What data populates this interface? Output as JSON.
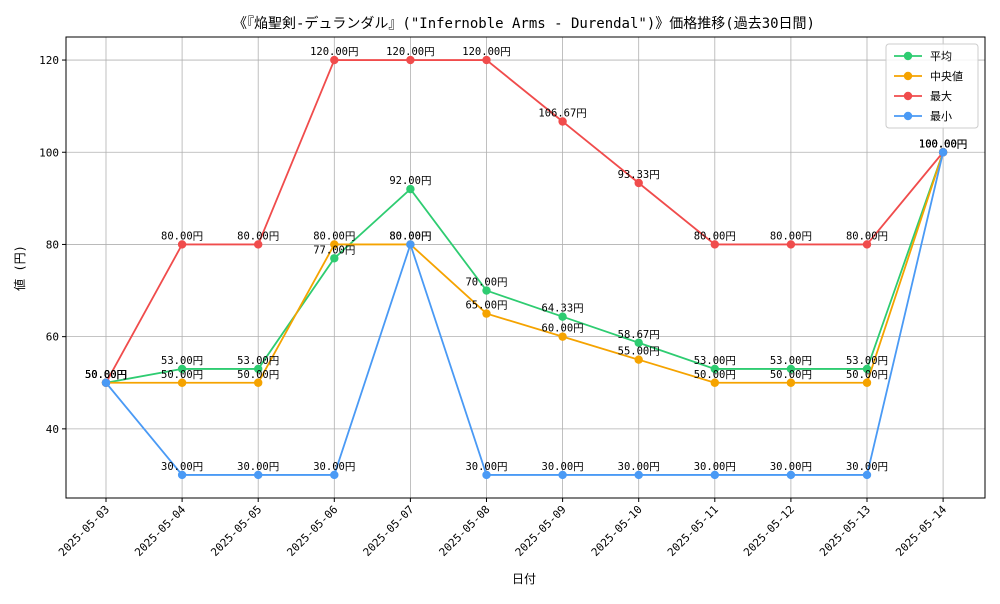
{
  "chart_data": {
    "type": "line",
    "title": "《『焔聖剣-デュランダル』(\"Infernoble Arms - Durendal\")》価格推移(過去30日間)",
    "xlabel": "日付",
    "ylabel": "値 (円)",
    "ylim": [
      25,
      125
    ],
    "yticks": [
      40,
      60,
      80,
      100,
      120
    ],
    "grid": true,
    "legend_position": "top-right",
    "categories": [
      "2025-05-03",
      "2025-05-04",
      "2025-05-05",
      "2025-05-06",
      "2025-05-07",
      "2025-05-08",
      "2025-05-09",
      "2025-05-10",
      "2025-05-11",
      "2025-05-12",
      "2025-05-13",
      "2025-05-14"
    ],
    "series": [
      {
        "name": "平均",
        "color": "#2ecc71",
        "values": [
          50,
          53,
          53,
          77,
          92,
          70,
          64.33,
          58.67,
          53,
          53,
          53,
          100
        ],
        "labels": [
          "50.00円",
          "53.00円",
          "53.00円",
          "77.00円",
          "92.00円",
          "70.00円",
          "64.33円",
          "58.67円",
          "53.00円",
          "53.00円",
          "53.00円",
          "100.00円"
        ]
      },
      {
        "name": "中央値",
        "color": "#f5a300",
        "values": [
          50,
          50,
          50,
          80,
          80,
          65,
          60,
          55,
          50,
          50,
          50,
          100
        ],
        "labels": [
          "50.00円",
          "50.00円",
          "50.00円",
          "80.00円",
          "80.00円",
          "65.00円",
          "60.00円",
          "55.00円",
          "50.00円",
          "50.00円",
          "50.00円",
          "100.00円"
        ]
      },
      {
        "name": "最大",
        "color": "#f04c4c",
        "values": [
          50,
          80,
          80,
          120,
          120,
          120,
          106.67,
          93.33,
          80,
          80,
          80,
          100
        ],
        "labels": [
          "50.00円",
          "80.00円",
          "80.00円",
          "120.00円",
          "120.00円",
          "120.00円",
          "106.67円",
          "93.33円",
          "80.00円",
          "80.00円",
          "80.00円",
          "100.00円"
        ]
      },
      {
        "name": "最小",
        "color": "#4a9af5",
        "values": [
          50,
          30,
          30,
          30,
          80,
          30,
          30,
          30,
          30,
          30,
          30,
          100
        ],
        "labels": [
          "50.00円",
          "30.00円",
          "30.00円",
          "30.00円",
          "80.00円",
          "30.00円",
          "30.00円",
          "30.00円",
          "30.00円",
          "30.00円",
          "30.00円",
          "100.00円"
        ]
      }
    ]
  }
}
